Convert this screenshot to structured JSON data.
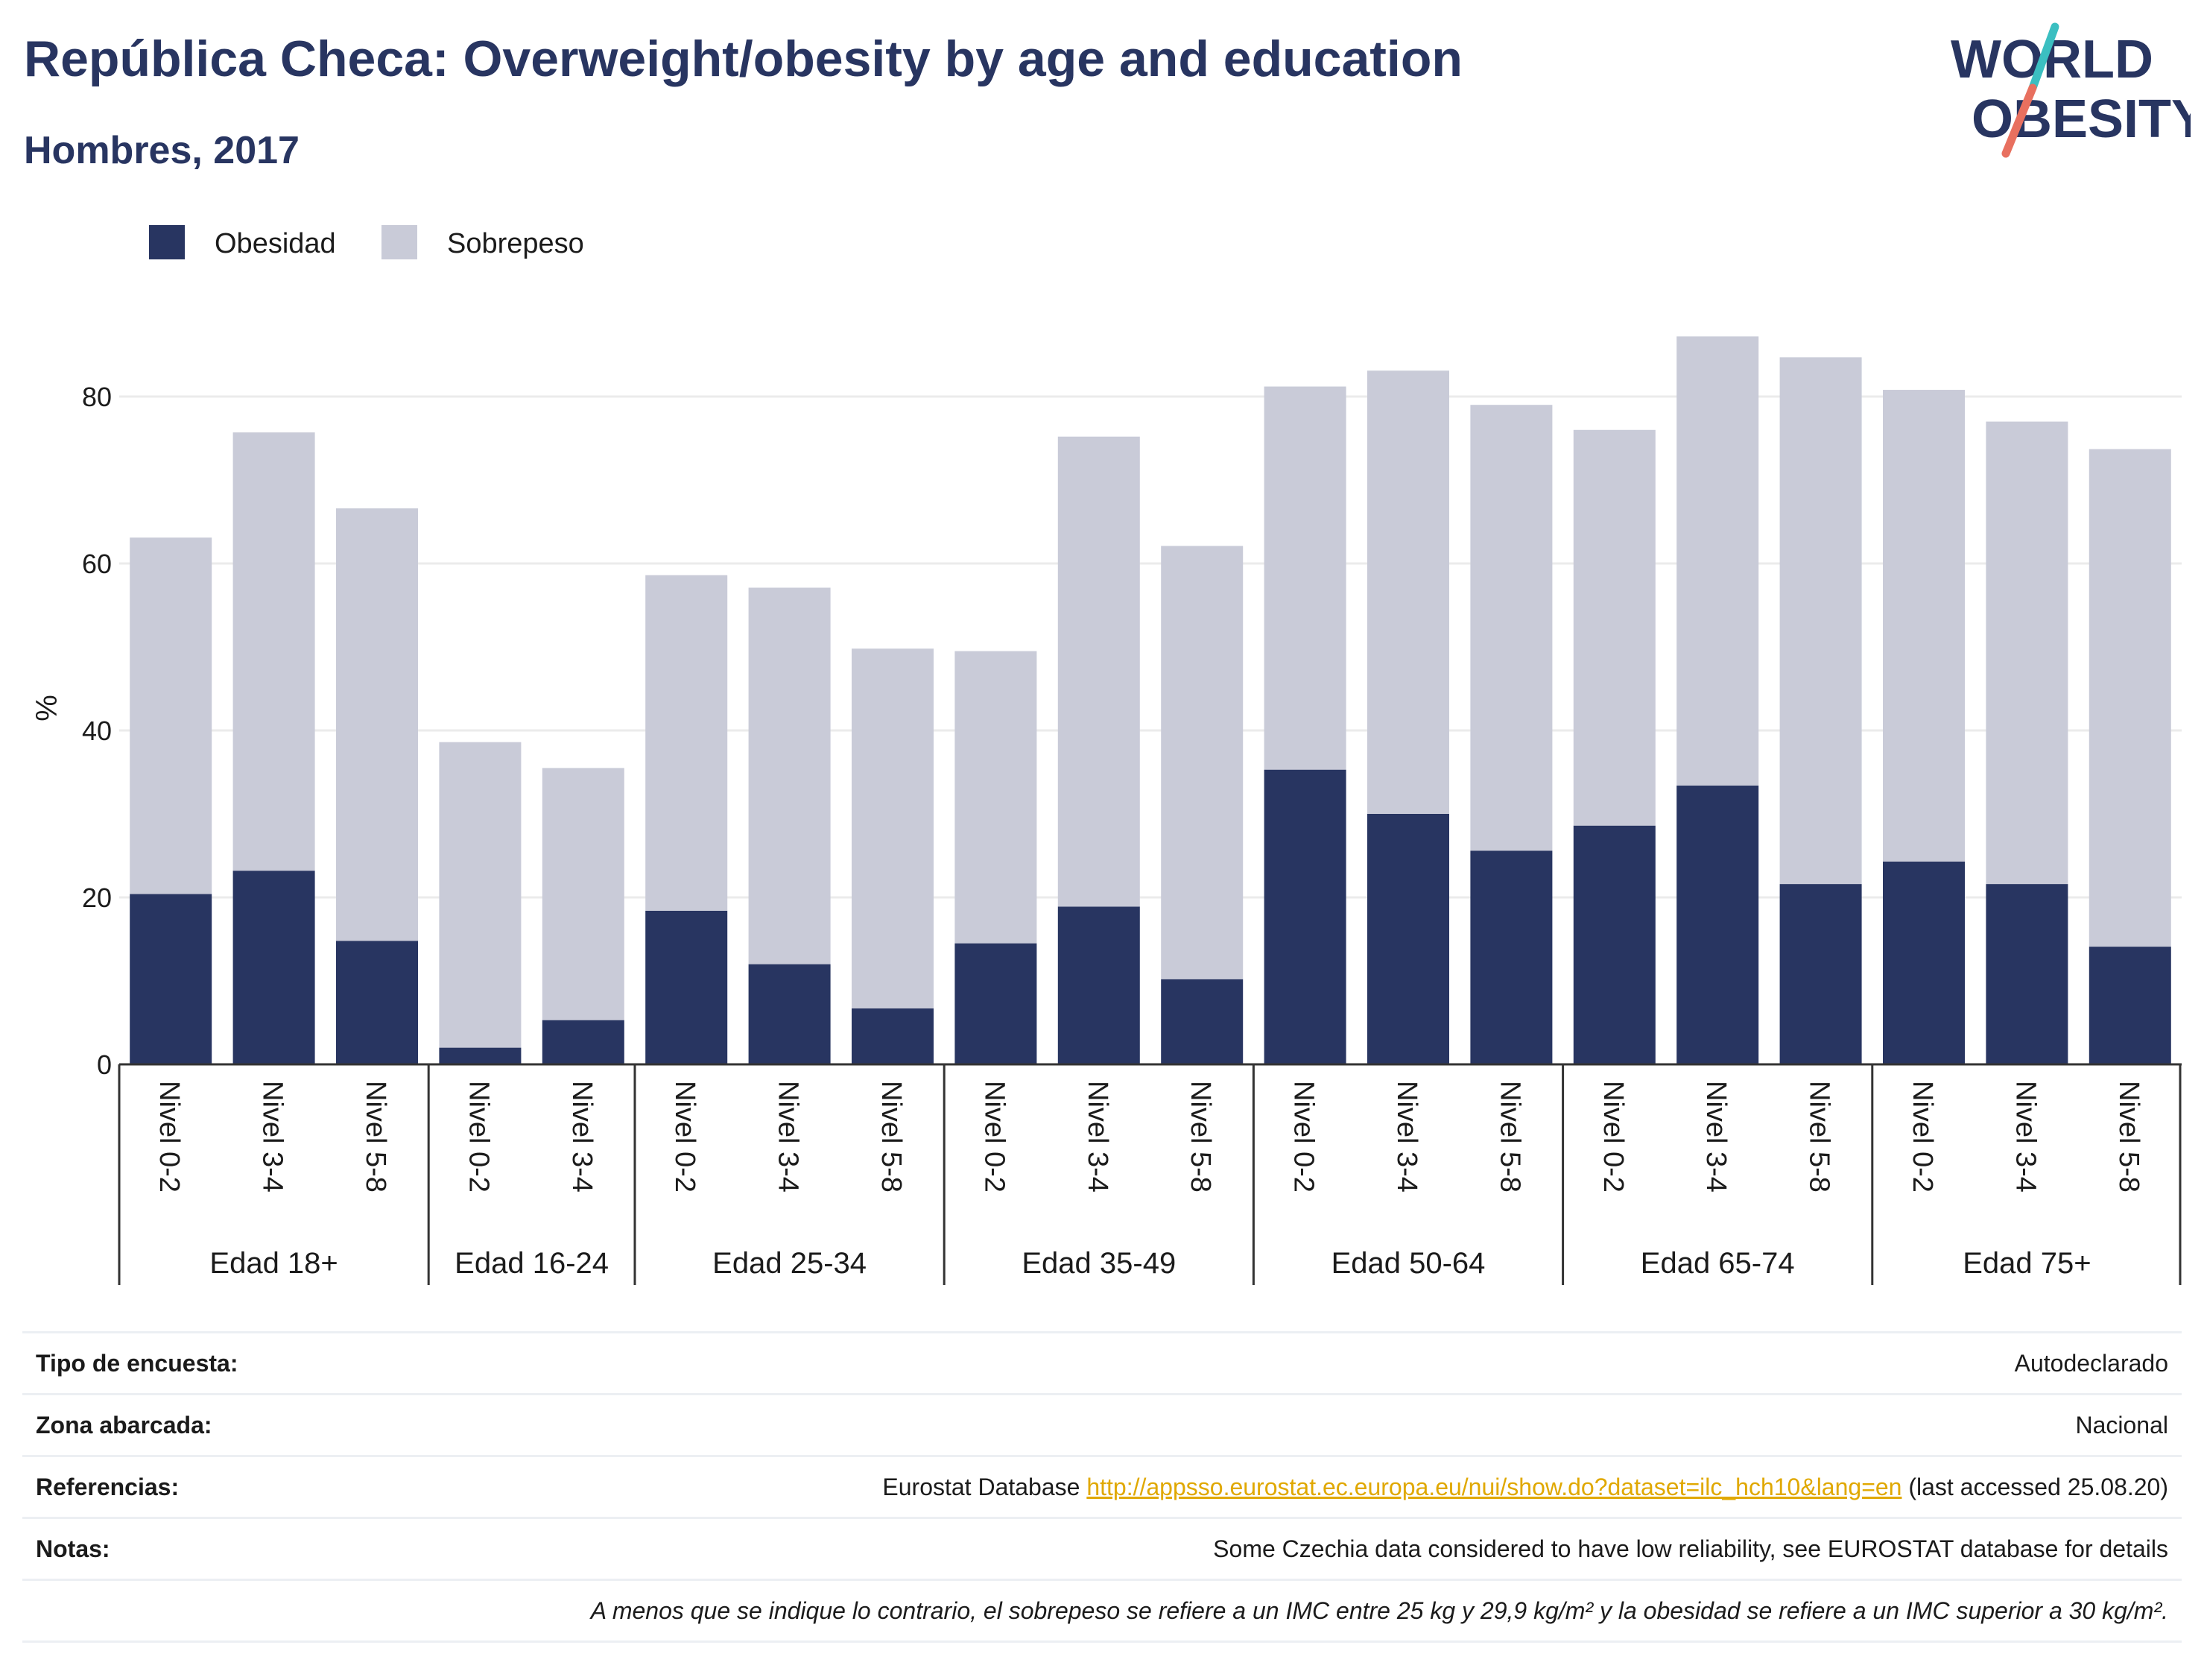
{
  "header": {
    "title": "República Checa: Overweight/obesity by age and education",
    "subtitle": "Hombres, 2017",
    "logo_line1": "WORLD",
    "logo_line2": "OBESITY"
  },
  "colors": {
    "obesity": "#283561",
    "overweight": "#c9cbd8",
    "title": "#283561",
    "link": "#e0a800",
    "logo_teal": "#3bbfc1",
    "logo_coral": "#e8705f"
  },
  "chart_data": {
    "type": "bar",
    "stacked": true,
    "ylabel": "%",
    "ylim": [
      0,
      90
    ],
    "yticks": [
      0,
      20,
      40,
      60,
      80
    ],
    "grid": true,
    "legend_position": "top-left",
    "groups": [
      {
        "label": "Edad 18+",
        "categories": [
          "Nivel 0-2",
          "Nivel 3-4",
          "Nivel 5-8"
        ]
      },
      {
        "label": "Edad 16-24",
        "categories": [
          "Nivel 0-2",
          "Nivel 3-4"
        ]
      },
      {
        "label": "Edad 25-34",
        "categories": [
          "Nivel 0-2",
          "Nivel 3-4",
          "Nivel 5-8"
        ]
      },
      {
        "label": "Edad 35-49",
        "categories": [
          "Nivel 0-2",
          "Nivel 3-4",
          "Nivel 5-8"
        ]
      },
      {
        "label": "Edad 50-64",
        "categories": [
          "Nivel 0-2",
          "Nivel 3-4",
          "Nivel 5-8"
        ]
      },
      {
        "label": "Edad 65-74",
        "categories": [
          "Nivel 0-2",
          "Nivel 3-4",
          "Nivel 5-8"
        ]
      },
      {
        "label": "Edad 75+",
        "categories": [
          "Nivel 0-2",
          "Nivel 3-4",
          "Nivel 5-8"
        ]
      }
    ],
    "series": [
      {
        "name": "Obesidad",
        "values": [
          20.4,
          23.2,
          14.8,
          2.0,
          5.3,
          18.4,
          12.0,
          6.7,
          14.5,
          18.9,
          10.2,
          35.3,
          30.0,
          25.6,
          28.6,
          33.4,
          21.6,
          24.3,
          21.6,
          14.1
        ]
      },
      {
        "name": "Sobrepeso",
        "values": [
          42.7,
          52.5,
          51.8,
          36.6,
          30.2,
          40.2,
          45.1,
          43.1,
          35.0,
          56.3,
          51.9,
          45.9,
          53.1,
          53.4,
          47.4,
          53.8,
          63.1,
          56.5,
          55.4,
          59.6
        ]
      }
    ]
  },
  "info": {
    "rows": [
      {
        "key": "Tipo de encuesta:",
        "value": "Autodeclarado"
      },
      {
        "key": "Zona abarcada:",
        "value": "Nacional"
      },
      {
        "key": "Referencias:",
        "value_prefix": "Eurostat Database ",
        "link": "http://appsso.eurostat.ec.europa.eu/nui/show.do?dataset=ilc_hch10&lang=en",
        "value_suffix": " (last accessed 25.08.20)"
      },
      {
        "key": "Notas:",
        "value": "Some Czechia data considered to have low reliability, see EUROSTAT database for details"
      }
    ],
    "footnote": "A menos que se indique lo contrario, el sobrepeso se refiere a un IMC entre 25 kg y 29,9 kg/m² y la obesidad se refiere a un IMC superior a 30 kg/m²."
  }
}
